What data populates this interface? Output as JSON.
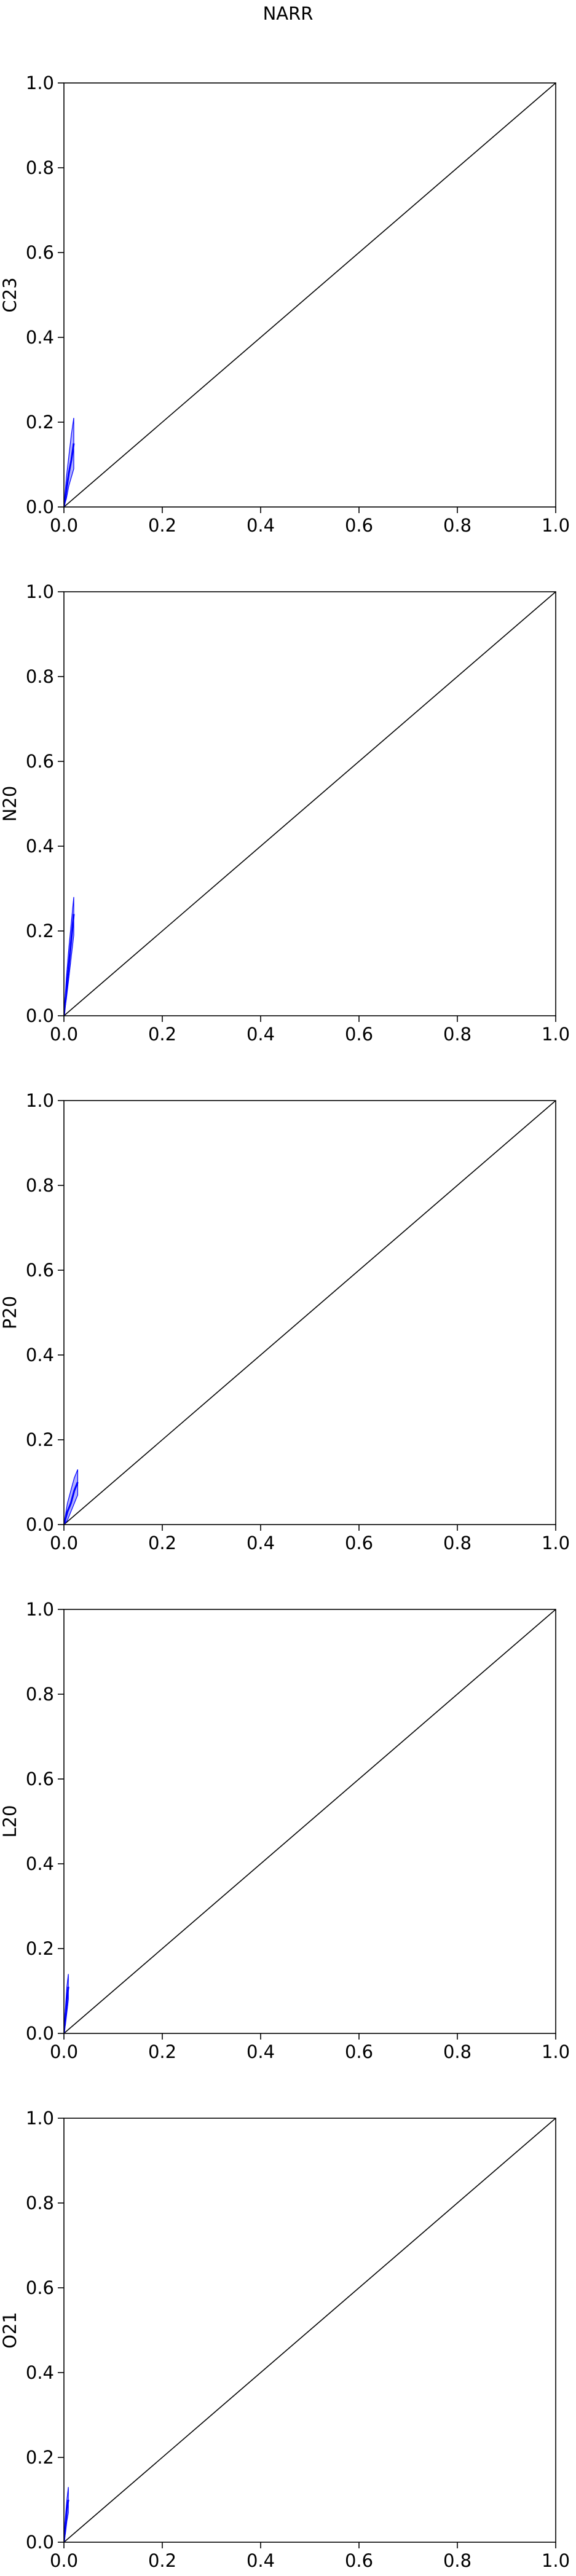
{
  "title": "NARR",
  "chart_data": [
    {
      "type": "area",
      "ylabel": "C23",
      "xlim": [
        0.0,
        1.0
      ],
      "ylim": [
        0.0,
        1.0
      ],
      "xticks": [
        "0.0",
        "0.2",
        "0.4",
        "0.6",
        "0.8",
        "1.0"
      ],
      "yticks": [
        "0.0",
        "0.2",
        "0.4",
        "0.6",
        "0.8",
        "1.0"
      ],
      "grid": false,
      "reference_line": {
        "x": [
          0.0,
          1.0
        ],
        "y": [
          0.0,
          1.0
        ],
        "color": "#000000"
      },
      "series": [
        {
          "color": "#0000ff",
          "x": [
            0.0,
            0.005,
            0.01,
            0.015,
            0.02
          ],
          "y": [
            0.0,
            0.04,
            0.08,
            0.11,
            0.15
          ],
          "upper": [
            0.0,
            0.07,
            0.12,
            0.17,
            0.21
          ],
          "lower": [
            0.0,
            0.02,
            0.05,
            0.07,
            0.09
          ]
        }
      ]
    },
    {
      "type": "area",
      "ylabel": "N20",
      "xlim": [
        0.0,
        1.0
      ],
      "ylim": [
        0.0,
        1.0
      ],
      "xticks": [
        "0.0",
        "0.2",
        "0.4",
        "0.6",
        "0.8",
        "1.0"
      ],
      "yticks": [
        "0.0",
        "0.2",
        "0.4",
        "0.6",
        "0.8",
        "1.0"
      ],
      "grid": false,
      "reference_line": {
        "x": [
          0.0,
          1.0
        ],
        "y": [
          0.0,
          1.0
        ],
        "color": "#000000"
      },
      "series": [
        {
          "color": "#0000ff",
          "x": [
            0.0,
            0.005,
            0.01,
            0.015,
            0.02
          ],
          "y": [
            0.0,
            0.06,
            0.12,
            0.18,
            0.24
          ],
          "upper": [
            0.0,
            0.09,
            0.16,
            0.22,
            0.28
          ],
          "lower": [
            0.0,
            0.04,
            0.09,
            0.14,
            0.19
          ]
        }
      ]
    },
    {
      "type": "area",
      "ylabel": "P20",
      "xlim": [
        0.0,
        1.0
      ],
      "ylim": [
        0.0,
        1.0
      ],
      "xticks": [
        "0.0",
        "0.2",
        "0.4",
        "0.6",
        "0.8",
        "1.0"
      ],
      "yticks": [
        "0.0",
        "0.2",
        "0.4",
        "0.6",
        "0.8",
        "1.0"
      ],
      "grid": false,
      "reference_line": {
        "x": [
          0.0,
          1.0
        ],
        "y": [
          0.0,
          1.0
        ],
        "color": "#000000"
      },
      "series": [
        {
          "color": "#0000ff",
          "x": [
            0.0,
            0.007,
            0.014,
            0.021,
            0.028
          ],
          "y": [
            0.0,
            0.03,
            0.05,
            0.08,
            0.1
          ],
          "upper": [
            0.0,
            0.05,
            0.08,
            0.11,
            0.13
          ],
          "lower": [
            0.0,
            0.01,
            0.03,
            0.05,
            0.07
          ]
        }
      ]
    },
    {
      "type": "area",
      "ylabel": "L20",
      "xlim": [
        0.0,
        1.0
      ],
      "ylim": [
        0.0,
        1.0
      ],
      "xticks": [
        "0.0",
        "0.2",
        "0.4",
        "0.6",
        "0.8",
        "1.0"
      ],
      "yticks": [
        "0.0",
        "0.2",
        "0.4",
        "0.6",
        "0.8",
        "1.0"
      ],
      "grid": false,
      "reference_line": {
        "x": [
          0.0,
          1.0
        ],
        "y": [
          0.0,
          1.0
        ],
        "color": "#000000"
      },
      "series": [
        {
          "color": "#0000ff",
          "x": [
            0.0,
            0.003,
            0.006,
            0.009
          ],
          "y": [
            0.0,
            0.04,
            0.08,
            0.11
          ],
          "upper": [
            0.0,
            0.06,
            0.11,
            0.14
          ],
          "lower": [
            0.0,
            0.02,
            0.05,
            0.08
          ]
        }
      ]
    },
    {
      "type": "area",
      "ylabel": "O21",
      "xlim": [
        0.0,
        1.0
      ],
      "ylim": [
        0.0,
        1.0
      ],
      "xticks": [
        "0.0",
        "0.2",
        "0.4",
        "0.6",
        "0.8",
        "1.0"
      ],
      "yticks": [
        "0.0",
        "0.2",
        "0.4",
        "0.6",
        "0.8",
        "1.0"
      ],
      "grid": false,
      "reference_line": {
        "x": [
          0.0,
          1.0
        ],
        "y": [
          0.0,
          1.0
        ],
        "color": "#000000"
      },
      "series": [
        {
          "color": "#0000ff",
          "x": [
            0.0,
            0.003,
            0.006,
            0.009
          ],
          "y": [
            0.0,
            0.04,
            0.08,
            0.1
          ],
          "upper": [
            0.0,
            0.06,
            0.1,
            0.13
          ],
          "lower": [
            0.0,
            0.02,
            0.05,
            0.07
          ]
        }
      ]
    }
  ]
}
